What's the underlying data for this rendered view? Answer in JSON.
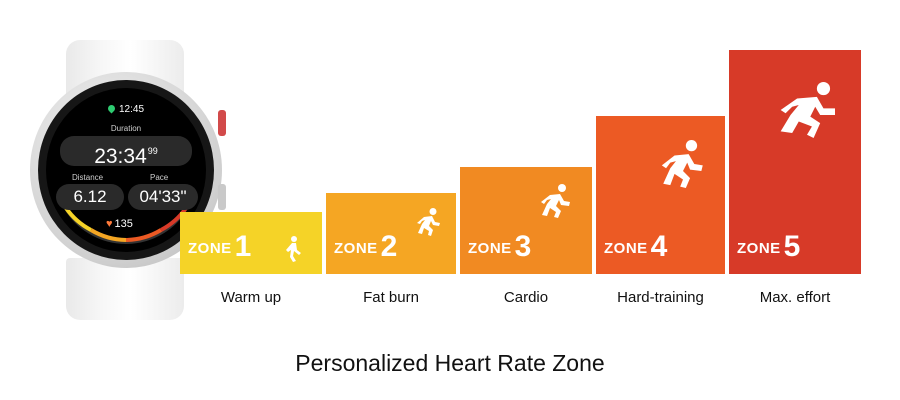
{
  "watch": {
    "time": "12:45",
    "duration_label": "Duration",
    "duration_value": "23:34",
    "duration_fraction": "99",
    "distance_label": "Distance",
    "distance_value": "6.12",
    "pace_label": "Pace",
    "pace_value": "04'33\"",
    "heart_rate": "135",
    "icons": [
      "location-pin-icon",
      "heart-icon"
    ]
  },
  "zones": [
    {
      "word": "ZONE",
      "number": "1",
      "label": "Warm up",
      "color": "#f5d327",
      "icon": "walker-icon"
    },
    {
      "word": "ZONE",
      "number": "2",
      "label": "Fat burn",
      "color": "#f5a623",
      "icon": "jogger-icon"
    },
    {
      "word": "ZONE",
      "number": "3",
      "label": "Cardio",
      "color": "#f18a22",
      "icon": "runner-icon"
    },
    {
      "word": "ZONE",
      "number": "4",
      "label": "Hard-training",
      "color": "#ec5a24",
      "icon": "runner-icon"
    },
    {
      "word": "ZONE",
      "number": "5",
      "label": "Max. effort",
      "color": "#d73a28",
      "icon": "sprinter-icon"
    }
  ],
  "title": "Personalized Heart Rate Zone"
}
